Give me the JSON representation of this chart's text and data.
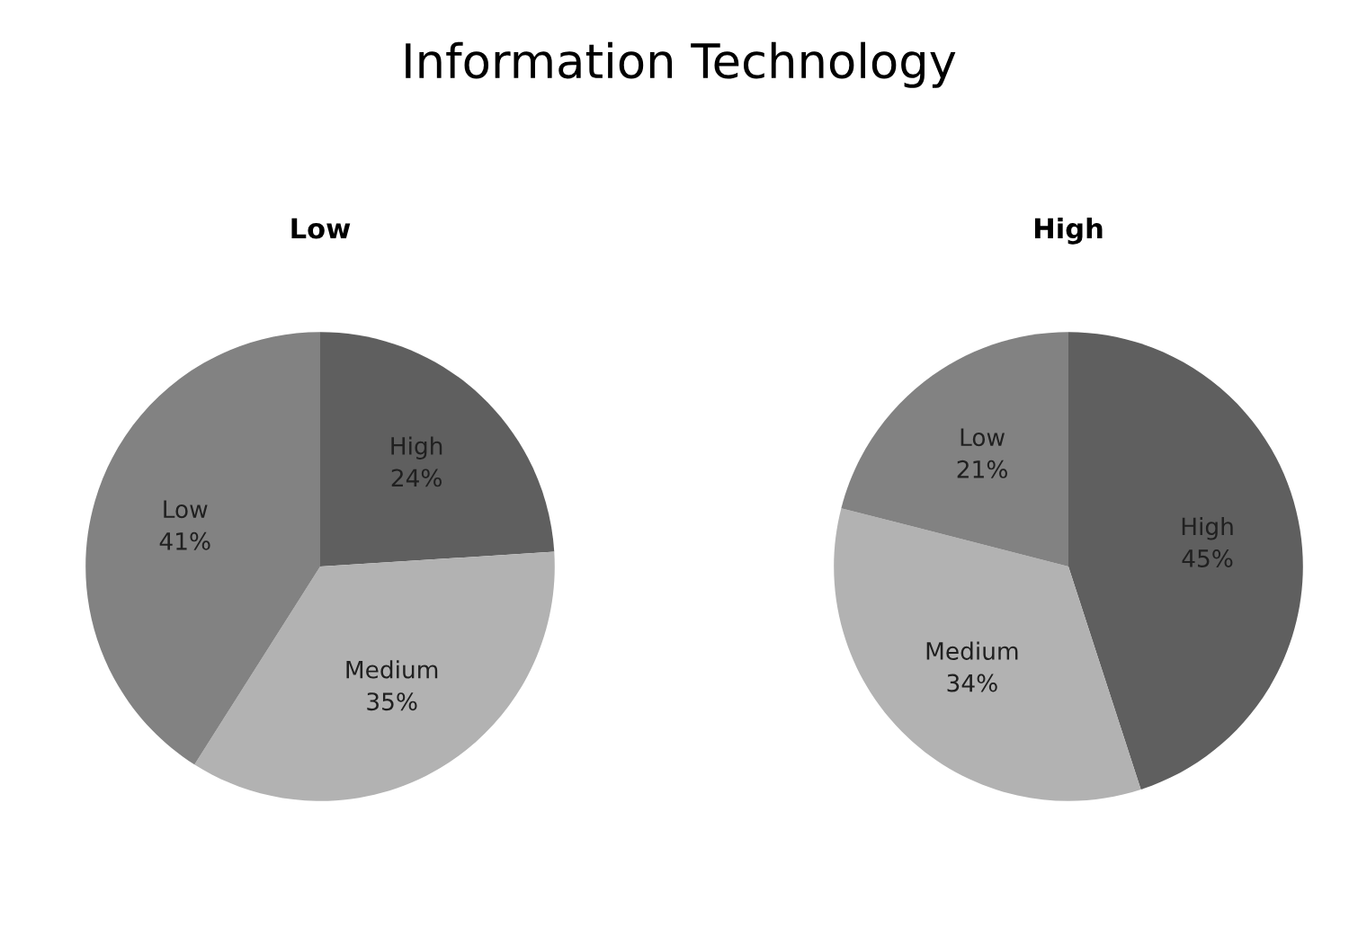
{
  "chart_data": [
    {
      "type": "pie",
      "title": "Low",
      "annotations": [
        "Information Technology"
      ],
      "categories": [
        "High",
        "Medium",
        "Low"
      ],
      "values": [
        24,
        35,
        41
      ],
      "value_labels": [
        "24%",
        "35%",
        "41%"
      ],
      "colors": [
        "#5f5f5f",
        "#b2b2b2",
        "#828282"
      ]
    },
    {
      "type": "pie",
      "title": "High",
      "categories": [
        "High",
        "Medium",
        "Low"
      ],
      "values": [
        45,
        34,
        21
      ],
      "value_labels": [
        "45%",
        "34%",
        "21%"
      ],
      "colors": [
        "#5f5f5f",
        "#b2b2b2",
        "#828282"
      ]
    }
  ]
}
